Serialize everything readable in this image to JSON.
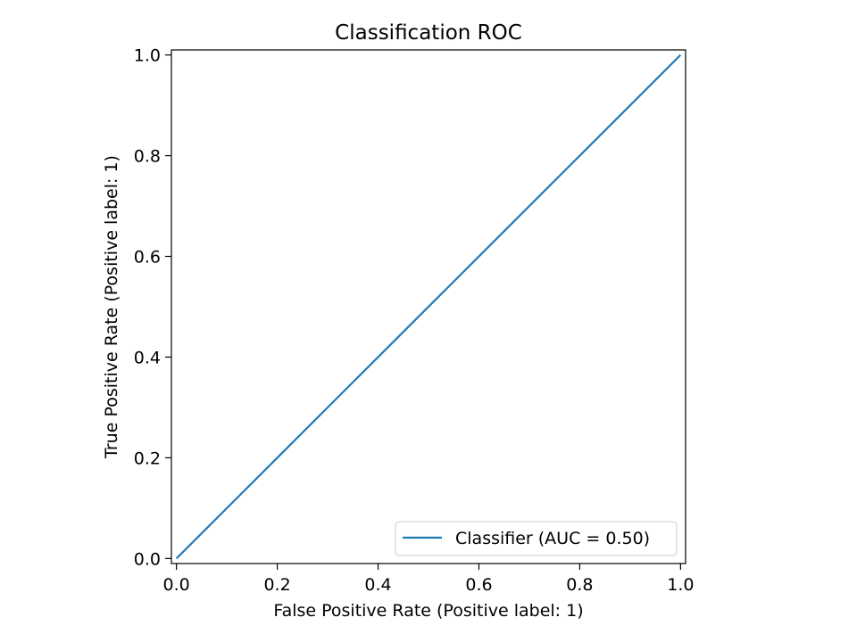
{
  "chart_data": {
    "type": "line",
    "title": "Classification ROC",
    "xlabel": "False Positive Rate (Positive label: 1)",
    "ylabel": "True Positive Rate (Positive label: 1)",
    "xlim": [
      -0.01,
      1.01
    ],
    "ylim": [
      -0.01,
      1.01
    ],
    "xticks": [
      0.0,
      0.2,
      0.4,
      0.6,
      0.8,
      1.0
    ],
    "yticks": [
      0.0,
      0.2,
      0.4,
      0.6,
      0.8,
      1.0
    ],
    "xtick_labels": [
      "0.0",
      "0.2",
      "0.4",
      "0.6",
      "0.8",
      "1.0"
    ],
    "ytick_labels": [
      "0.0",
      "0.2",
      "0.4",
      "0.6",
      "0.8",
      "1.0"
    ],
    "grid": false,
    "legend_position": "lower-right",
    "series": [
      {
        "name": "Classifier (AUC = 0.50)",
        "color": "#1f77b4",
        "x": [
          0.0,
          1.0
        ],
        "y": [
          0.0,
          1.0
        ]
      }
    ]
  }
}
